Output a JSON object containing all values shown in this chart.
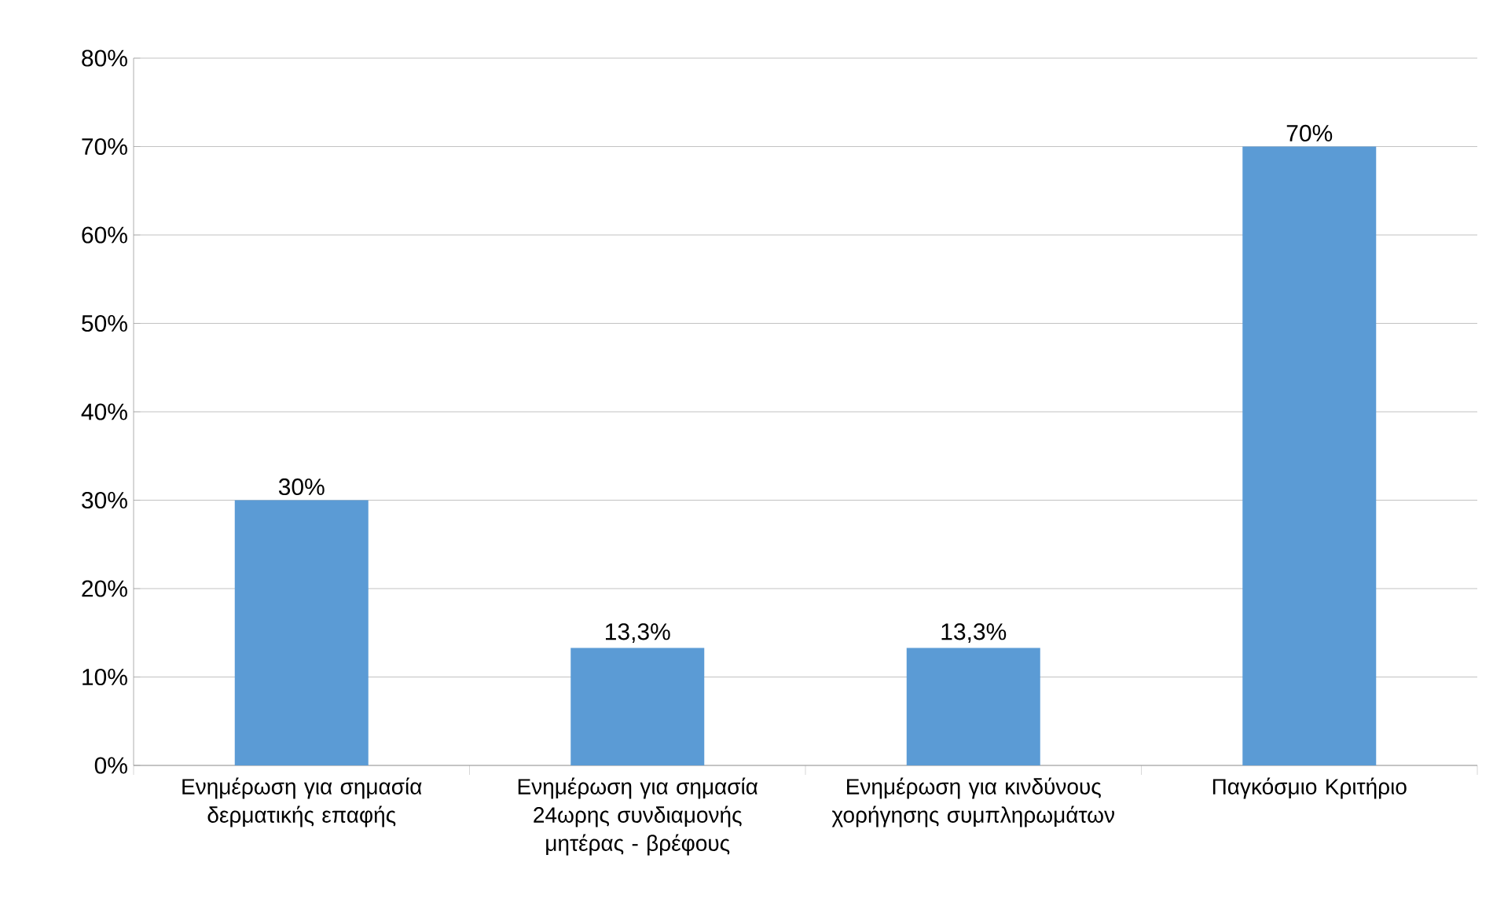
{
  "chart_data": {
    "type": "bar",
    "categories": [
      "Ενημέρωση για σημασία δερματικής επαφής",
      "Ενημέρωση για σημασία 24ωρης συνδιαμονής μητέρας - βρέφους",
      "Ενημέρωση για κινδύνους χορήγησης συμπληρωμάτων",
      "Παγκόσμιο Κριτήριο"
    ],
    "values": [
      30,
      13.3,
      13.3,
      70
    ],
    "value_labels": [
      "30%",
      "13,3%",
      "13,3%",
      "70%"
    ],
    "color": "#5b9bd5",
    "ylim": [
      0,
      80
    ],
    "yticks": [
      {
        "value": 0,
        "label": "0%"
      },
      {
        "value": 10,
        "label": "10%"
      },
      {
        "value": 20,
        "label": "20%"
      },
      {
        "value": 30,
        "label": "30%"
      },
      {
        "value": 40,
        "label": "40%"
      },
      {
        "value": 50,
        "label": "50%"
      },
      {
        "value": 60,
        "label": "60%"
      },
      {
        "value": 70,
        "label": "70%"
      },
      {
        "value": 80,
        "label": "80%"
      }
    ],
    "grid": "y"
  }
}
